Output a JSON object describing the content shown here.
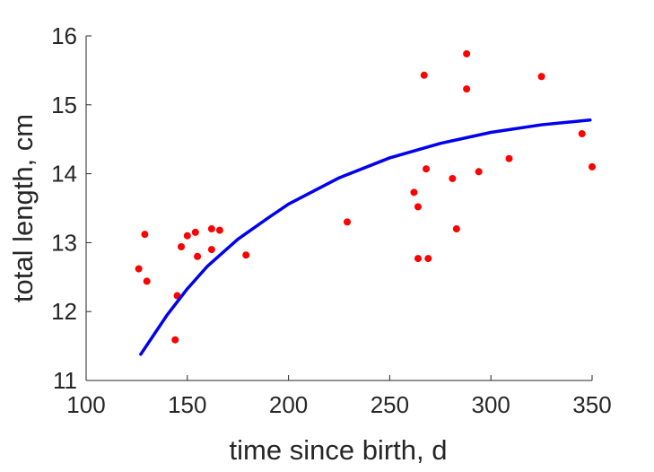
{
  "chart_data": {
    "type": "scatter",
    "title": "",
    "xlabel": "time since birth, d",
    "ylabel": "total length, cm",
    "xlim": [
      100,
      350
    ],
    "ylim": [
      11,
      16
    ],
    "xticks": [
      100,
      150,
      200,
      250,
      300,
      350
    ],
    "yticks": [
      11,
      12,
      13,
      14,
      15,
      16
    ],
    "xtick_labels": [
      "100",
      "150",
      "200",
      "250",
      "300",
      "350"
    ],
    "ytick_labels": [
      "11",
      "12",
      "13",
      "14",
      "15",
      "16"
    ],
    "grid": false,
    "legend": "none",
    "series": [
      {
        "kind": "scatter",
        "color": "#ff0000",
        "points": [
          [
            126,
            12.62
          ],
          [
            129,
            13.12
          ],
          [
            130,
            12.44
          ],
          [
            144,
            11.59
          ],
          [
            145,
            12.23
          ],
          [
            147,
            12.94
          ],
          [
            150,
            13.1
          ],
          [
            154,
            13.15
          ],
          [
            155,
            12.8
          ],
          [
            162,
            13.2
          ],
          [
            162,
            12.9
          ],
          [
            166,
            13.18
          ],
          [
            179,
            12.82
          ],
          [
            229,
            13.3
          ],
          [
            262,
            13.73
          ],
          [
            264,
            13.52
          ],
          [
            264,
            12.77
          ],
          [
            267,
            15.43
          ],
          [
            268,
            14.07
          ],
          [
            269,
            12.77
          ],
          [
            281,
            13.93
          ],
          [
            283,
            13.2
          ],
          [
            288,
            15.74
          ],
          [
            288,
            15.23
          ],
          [
            294,
            14.03
          ],
          [
            309,
            14.22
          ],
          [
            325,
            15.41
          ],
          [
            345,
            14.58
          ],
          [
            350,
            14.1
          ]
        ]
      },
      {
        "kind": "line",
        "color": "#0000ee",
        "points": [
          [
            127,
            11.38
          ],
          [
            140,
            11.95
          ],
          [
            150,
            12.33
          ],
          [
            160,
            12.66
          ],
          [
            175,
            13.05
          ],
          [
            190,
            13.36
          ],
          [
            200,
            13.56
          ],
          [
            225,
            13.94
          ],
          [
            250,
            14.23
          ],
          [
            275,
            14.44
          ],
          [
            300,
            14.6
          ],
          [
            325,
            14.71
          ],
          [
            349,
            14.78
          ]
        ]
      }
    ]
  }
}
